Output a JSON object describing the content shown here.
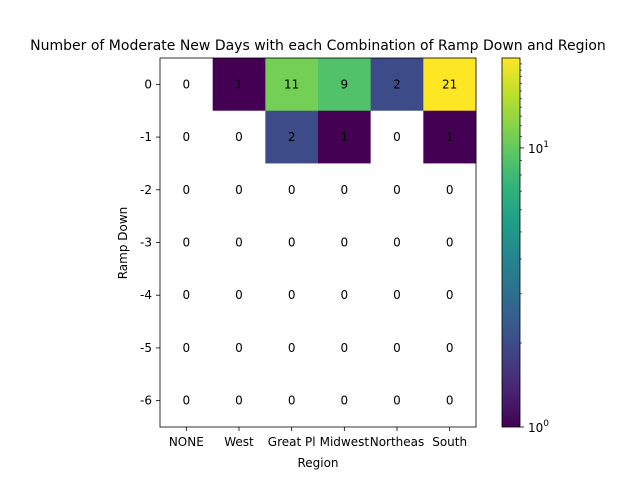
{
  "chart_data": {
    "type": "heatmap",
    "title": "Number of Moderate New Days with each Combination of Ramp Down and Region",
    "xlabel": "Region",
    "ylabel": "Ramp Down",
    "x_categories": [
      "NONE",
      "West",
      "Great Pl",
      "Midwest",
      "Northeas",
      "South"
    ],
    "y_categories": [
      "0",
      "-1",
      "-2",
      "-3",
      "-4",
      "-5",
      "-6"
    ],
    "values": [
      [
        0,
        1,
        11,
        9,
        2,
        21
      ],
      [
        0,
        0,
        2,
        1,
        0,
        1
      ],
      [
        0,
        0,
        0,
        0,
        0,
        0
      ],
      [
        0,
        0,
        0,
        0,
        0,
        0
      ],
      [
        0,
        0,
        0,
        0,
        0,
        0
      ],
      [
        0,
        0,
        0,
        0,
        0,
        0
      ],
      [
        0,
        0,
        0,
        0,
        0,
        0
      ]
    ],
    "color_scale": "log",
    "colormap": "viridis",
    "colorbar": {
      "min": 1,
      "max": 21,
      "tick_labels": [
        {
          "value": 1,
          "base": "10",
          "exp": "0"
        },
        {
          "value": 10,
          "base": "10",
          "exp": "1"
        }
      ]
    },
    "zero_color": "#ffffff",
    "grid": false
  }
}
